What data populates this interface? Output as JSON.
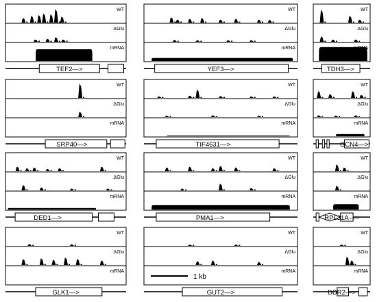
{
  "track_labels": [
    "WT",
    "ΔGlu",
    "mRNA"
  ],
  "scale_bar": {
    "label": "1 kb"
  },
  "panels": [
    {
      "gene": "TEF2",
      "arrow": "—>",
      "wt": [
        [
          0.15,
          0.3
        ],
        [
          0.22,
          0.45
        ],
        [
          0.28,
          0.5
        ],
        [
          0.32,
          0.6
        ],
        [
          0.38,
          0.55
        ],
        [
          0.42,
          0.9
        ],
        [
          0.47,
          0.4
        ]
      ],
      "dglu": [
        [
          0.25,
          0.15
        ],
        [
          0.35,
          0.2
        ],
        [
          0.42,
          0.3
        ],
        [
          0.48,
          0.15
        ]
      ],
      "mrna": {
        "start": 0.25,
        "end": 0.72,
        "level": 0.78
      }
    },
    {
      "gene": "YEF3",
      "arrow": "—>",
      "wt": [
        [
          0.18,
          0.35
        ],
        [
          0.22,
          0.2
        ],
        [
          0.3,
          0.25
        ],
        [
          0.38,
          0.3
        ],
        [
          0.5,
          0.2
        ],
        [
          0.6,
          0.25
        ],
        [
          0.75,
          0.2
        ],
        [
          0.82,
          0.18
        ]
      ],
      "dglu": [
        [
          0.2,
          0.12
        ],
        [
          0.35,
          0.1
        ],
        [
          0.55,
          0.1
        ],
        [
          0.7,
          0.1
        ]
      ],
      "mrna": {
        "start": 0.05,
        "end": 0.97,
        "level": 0.2
      }
    },
    {
      "gene": "TDH3",
      "arrow": "—>",
      "wt": [
        [
          0.15,
          0.85
        ],
        [
          0.65,
          0.45
        ],
        [
          0.82,
          0.2
        ]
      ],
      "dglu": [
        [
          0.15,
          0.35
        ],
        [
          0.35,
          0.15
        ],
        [
          0.75,
          0.15
        ]
      ],
      "mrna": {
        "start": 0.1,
        "end": 0.95,
        "level": 0.92
      }
    },
    {
      "gene": "SRP40",
      "arrow": "—>",
      "wt": [
        [
          0.62,
          0.95
        ]
      ],
      "dglu": [
        [
          0.62,
          0.35
        ]
      ],
      "mrna": {
        "start": 0.55,
        "end": 0.55,
        "level": 0.0
      }
    },
    {
      "gene": "TIF4631",
      "arrow": "—>",
      "wt": [
        [
          0.1,
          0.1
        ],
        [
          0.3,
          0.15
        ],
        [
          0.35,
          0.55
        ],
        [
          0.5,
          0.12
        ],
        [
          0.7,
          0.1
        ],
        [
          0.85,
          0.1
        ]
      ],
      "dglu": [
        [
          0.15,
          0.1
        ],
        [
          0.45,
          0.12
        ],
        [
          0.75,
          0.1
        ]
      ],
      "mrna": {
        "start": 0.15,
        "end": 0.95,
        "level": 0.05
      }
    },
    {
      "gene": "GCN4",
      "arrow": "—>",
      "wt": [
        [
          0.1,
          0.45
        ],
        [
          0.3,
          0.25
        ],
        [
          0.7,
          0.45
        ],
        [
          0.85,
          0.2
        ]
      ],
      "dglu": [
        [
          0.1,
          0.12
        ],
        [
          0.4,
          0.1
        ],
        [
          0.75,
          0.12
        ]
      ],
      "mrna": {
        "start": 0.4,
        "end": 0.9,
        "level": 0.15
      }
    },
    {
      "gene": "DED1",
      "arrow": "—>",
      "wt": [
        [
          0.1,
          0.3
        ],
        [
          0.18,
          0.2
        ],
        [
          0.24,
          0.25
        ],
        [
          0.35,
          0.15
        ],
        [
          0.45,
          0.2
        ],
        [
          0.8,
          0.3
        ]
      ],
      "dglu": [
        [
          0.15,
          0.35
        ],
        [
          0.3,
          0.2
        ],
        [
          0.55,
          0.12
        ],
        [
          0.85,
          0.12
        ]
      ],
      "mrna": {
        "start": 0.02,
        "end": 0.75,
        "level": 0.1
      }
    },
    {
      "gene": "PMA1",
      "arrow": "—>",
      "wt": [
        [
          0.15,
          0.25
        ],
        [
          0.3,
          0.3
        ],
        [
          0.45,
          0.2
        ],
        [
          0.5,
          0.35
        ],
        [
          0.6,
          0.25
        ],
        [
          0.85,
          0.2
        ]
      ],
      "dglu": [
        [
          0.25,
          0.12
        ],
        [
          0.5,
          0.45
        ],
        [
          0.7,
          0.15
        ]
      ],
      "mrna": {
        "start": 0.05,
        "end": 0.95,
        "level": 0.3
      }
    },
    {
      "gene": "RPL31A",
      "arrow": "—>",
      "wt": [
        [
          0.42,
          0.45
        ],
        [
          0.55,
          0.25
        ]
      ],
      "dglu": [
        [
          0.42,
          0.3
        ]
      ],
      "mrna": {
        "start": 0.35,
        "end": 0.8,
        "level": 0.35
      }
    },
    {
      "gene": "GLK1",
      "arrow": "—>",
      "wt": [
        [
          0.2,
          0.12
        ],
        [
          0.55,
          0.1
        ]
      ],
      "dglu": [
        [
          0.15,
          0.4
        ],
        [
          0.3,
          0.45
        ],
        [
          0.4,
          0.35
        ],
        [
          0.5,
          0.5
        ],
        [
          0.6,
          0.4
        ],
        [
          0.8,
          0.3
        ]
      ],
      "mrna": {
        "start": 0.4,
        "end": 0.4,
        "level": 0.0
      }
    },
    {
      "gene": "GUT2",
      "arrow": "—>",
      "wt": [
        [
          0.3,
          0.08
        ],
        [
          0.6,
          0.08
        ]
      ],
      "dglu": [
        [
          0.35,
          0.25
        ],
        [
          0.45,
          0.3
        ],
        [
          0.75,
          0.2
        ]
      ],
      "mrna": {
        "start": 0.5,
        "end": 0.5,
        "level": 0.0
      }
    },
    {
      "gene": "DDR2",
      "arrow": "—>",
      "wt": [
        [
          0.5,
          0.08
        ]
      ],
      "dglu": [
        [
          0.6,
          0.55
        ],
        [
          0.68,
          0.3
        ]
      ],
      "mrna": {
        "start": 0.5,
        "end": 0.5,
        "level": 0.0
      }
    }
  ]
}
